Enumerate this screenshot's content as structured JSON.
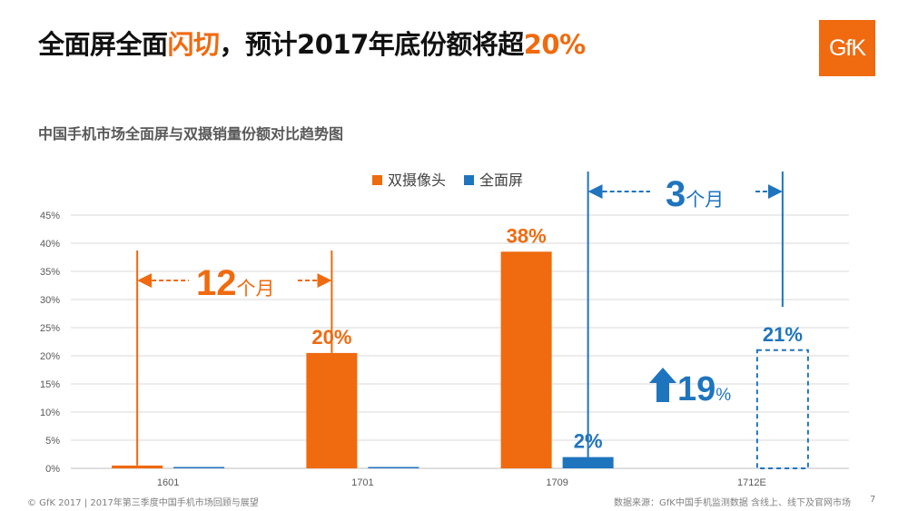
{
  "title": {
    "prefix": "全面屏全面",
    "highlight1": "闪切",
    "middle": "，预计2017年底份额将超",
    "highlight2": "20%"
  },
  "logo": "GfK",
  "subtitle": "中国手机市场全面屏与双摄销量份额对比趋势图",
  "colors": {
    "orange": "#f06a0f",
    "blue": "#1f74be",
    "grid": "#d9d9d9",
    "tick": "#595959"
  },
  "chart_data": {
    "type": "bar",
    "categories": [
      "1601",
      "1701",
      "1709",
      "1712E"
    ],
    "series": [
      {
        "name": "双摄像头",
        "values": [
          0.5,
          20.5,
          38.5,
          null
        ],
        "labels": [
          "",
          "20%",
          "38%",
          ""
        ]
      },
      {
        "name": "全面屏",
        "values": [
          0,
          0.2,
          2,
          21
        ],
        "labels": [
          "",
          "",
          "2%",
          "21%"
        ],
        "projected": [
          false,
          false,
          false,
          true
        ]
      }
    ],
    "ylim": [
      0,
      45
    ],
    "yticks": [
      0,
      5,
      10,
      15,
      20,
      25,
      30,
      35,
      40,
      45
    ],
    "ytick_labels": [
      "0%",
      "5%",
      "10%",
      "15%",
      "20%",
      "25%",
      "30%",
      "35%",
      "40%",
      "45%"
    ],
    "grid": true,
    "legend": "top-center",
    "annotations": {
      "span_orange": {
        "from": "1601",
        "to": "1701",
        "number": "12",
        "unit": "个月"
      },
      "span_blue": {
        "from": "1709",
        "to": "1712E",
        "number": "3",
        "unit": "个月"
      },
      "growth": {
        "number": "19",
        "unit": "%"
      }
    }
  },
  "footer": {
    "left": "© GfK 2017 | 2017年第三季度中国手机市场回顾与展望",
    "right": "数据来源：GfK中国手机监测数据 含线上、线下及官网市场",
    "page": "7"
  }
}
